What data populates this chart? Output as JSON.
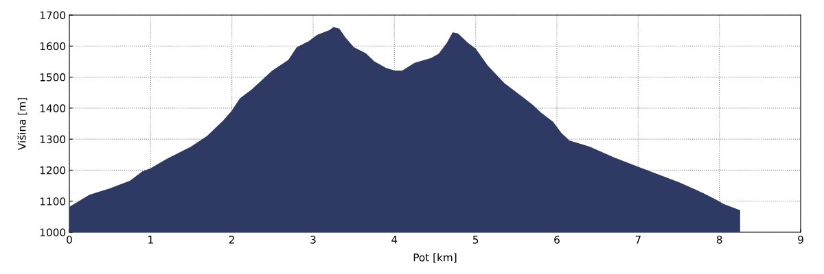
{
  "chart_data": {
    "type": "area",
    "xlabel": "Pot [km]",
    "ylabel": "Višina [m]",
    "xlim": [
      0,
      9
    ],
    "ylim": [
      1000,
      1700
    ],
    "xticks": [
      0,
      1,
      2,
      3,
      4,
      5,
      6,
      7,
      8,
      9
    ],
    "yticks": [
      1000,
      1100,
      1200,
      1300,
      1400,
      1500,
      1600,
      1700
    ],
    "grid": true,
    "line_style": "dotted",
    "series": [
      {
        "color": "#2e3a64",
        "x": [
          0,
          0.25,
          0.5,
          0.75,
          0.9,
          1.0,
          1.2,
          1.5,
          1.7,
          1.9,
          2.0,
          2.1,
          2.25,
          2.5,
          2.7,
          2.8,
          2.95,
          3.05,
          3.2,
          3.25,
          3.32,
          3.4,
          3.5,
          3.65,
          3.75,
          3.9,
          4.0,
          4.1,
          4.25,
          4.45,
          4.55,
          4.65,
          4.72,
          4.78,
          4.9,
          5.0,
          5.15,
          5.35,
          5.5,
          5.7,
          5.8,
          5.95,
          6.05,
          6.15,
          6.4,
          6.7,
          7.0,
          7.25,
          7.5,
          7.8,
          7.95,
          8.05,
          8.2,
          8.25
        ],
        "values": [
          1080,
          1120,
          1140,
          1165,
          1195,
          1205,
          1235,
          1275,
          1310,
          1360,
          1390,
          1430,
          1460,
          1520,
          1555,
          1595,
          1615,
          1635,
          1650,
          1660,
          1655,
          1625,
          1595,
          1575,
          1550,
          1528,
          1520,
          1520,
          1545,
          1560,
          1575,
          1610,
          1643,
          1640,
          1610,
          1590,
          1535,
          1480,
          1450,
          1410,
          1385,
          1355,
          1320,
          1295,
          1275,
          1240,
          1210,
          1185,
          1160,
          1125,
          1105,
          1090,
          1075,
          1070
        ]
      }
    ]
  }
}
